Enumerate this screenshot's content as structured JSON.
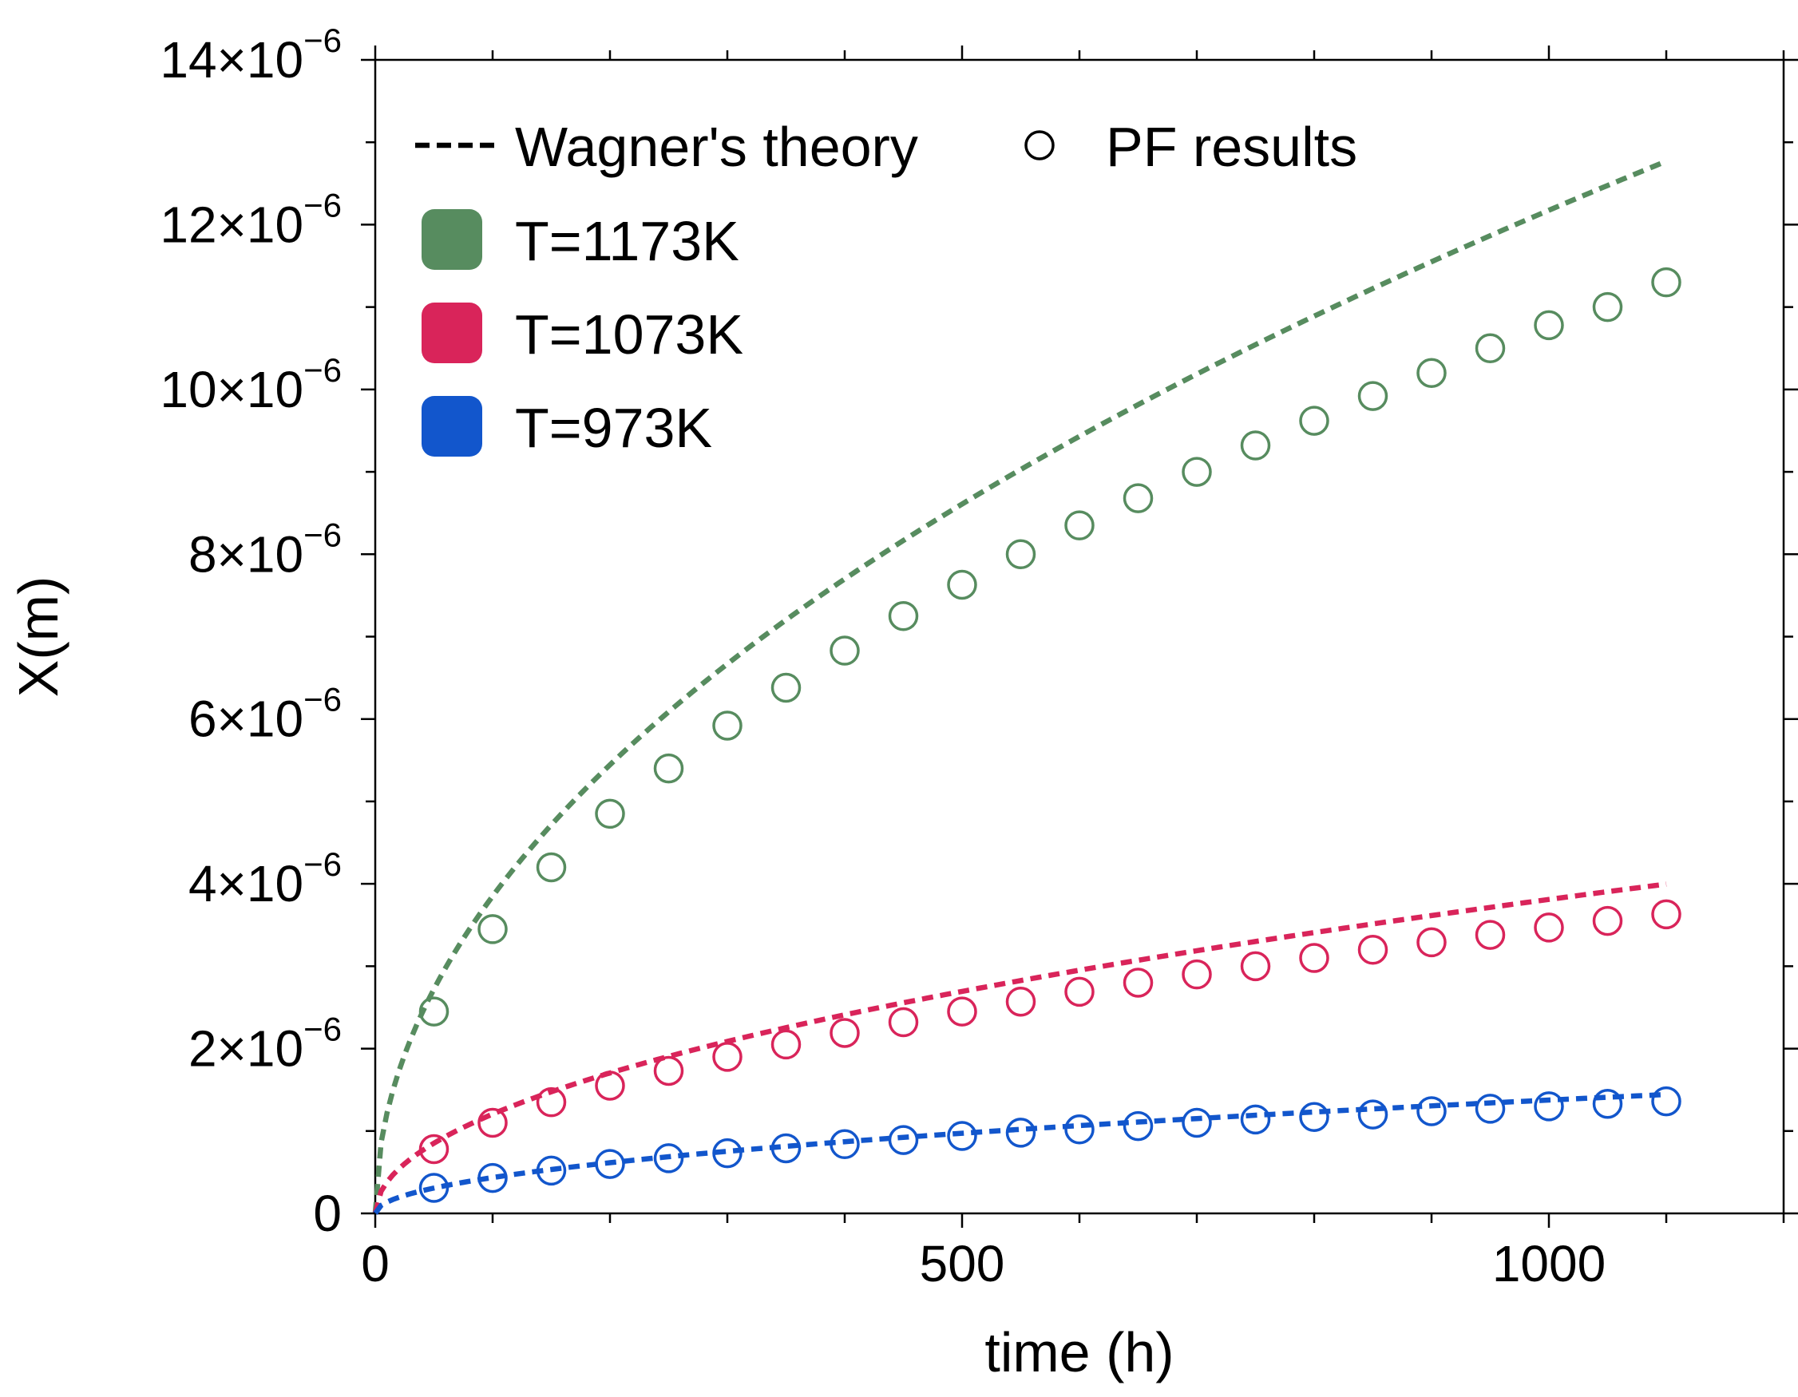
{
  "chart_data": {
    "type": "line",
    "title": "",
    "xlabel": "time (h)",
    "ylabel": "X(m)",
    "xlim": [
      0,
      1200
    ],
    "ylim": [
      0,
      1.4e-05
    ],
    "x_ticks": [
      0,
      500,
      1000
    ],
    "x_tick_labels": [
      "0",
      "500",
      "1000"
    ],
    "y_ticks": [
      0,
      2e-06,
      4e-06,
      6e-06,
      8e-06,
      1e-05,
      1.2e-05,
      1.4e-05
    ],
    "y_tick_labels": [
      {
        "base": "0",
        "exp": ""
      },
      {
        "base": "2×10",
        "exp": "−6"
      },
      {
        "base": "4×10",
        "exp": "−6"
      },
      {
        "base": "6×10",
        "exp": "−6"
      },
      {
        "base": "8×10",
        "exp": "−6"
      },
      {
        "base": "10×10",
        "exp": "−6"
      },
      {
        "base": "12×10",
        "exp": "−6"
      },
      {
        "base": "14×10",
        "exp": "−6"
      }
    ],
    "grid": false,
    "legend": {
      "placement": "top-left",
      "line_label": "Wagner's theory",
      "marker_label": "PF results",
      "series_labels": [
        "T=1173K",
        "T=1073K",
        "T=973K"
      ]
    },
    "series": [
      {
        "name": "T=1173K",
        "color": "#578c5f",
        "theory": {
          "x_max": 1100,
          "x_step": 5,
          "k": 3.85e-07
        },
        "pf_results": {
          "x": [
            50,
            100,
            150,
            200,
            250,
            300,
            350,
            400,
            450,
            500,
            550,
            600,
            650,
            700,
            750,
            800,
            850,
            900,
            950,
            1000,
            1050,
            1100
          ],
          "y": [
            2.45e-06,
            3.45e-06,
            4.2e-06,
            4.85e-06,
            5.4e-06,
            5.92e-06,
            6.38e-06,
            6.83e-06,
            7.25e-06,
            7.63e-06,
            8e-06,
            8.35e-06,
            8.68e-06,
            9e-06,
            9.32e-06,
            9.62e-06,
            9.92e-06,
            1.02e-05,
            1.05e-05,
            1.078e-05,
            1.1e-05,
            1.13e-05
          ]
        }
      },
      {
        "name": "T=1073K",
        "color": "#d9245a",
        "theory": {
          "x_max": 1100,
          "x_step": 5,
          "k": 1.205e-07
        },
        "pf_results": {
          "x": [
            50,
            100,
            150,
            200,
            250,
            300,
            350,
            400,
            450,
            500,
            550,
            600,
            650,
            700,
            750,
            800,
            850,
            900,
            950,
            1000,
            1050,
            1100
          ],
          "y": [
            7.8e-07,
            1.1e-06,
            1.35e-06,
            1.55e-06,
            1.73e-06,
            1.9e-06,
            2.05e-06,
            2.19e-06,
            2.32e-06,
            2.45e-06,
            2.57e-06,
            2.69e-06,
            2.8e-06,
            2.9e-06,
            3e-06,
            3.1e-06,
            3.2e-06,
            3.29e-06,
            3.38e-06,
            3.47e-06,
            3.55e-06,
            3.63e-06
          ]
        }
      },
      {
        "name": "T=973K",
        "color": "#1256cc",
        "theory": {
          "x_max": 1100,
          "x_step": 5,
          "k": 4.35e-08
        },
        "pf_results": {
          "x": [
            50,
            100,
            150,
            200,
            250,
            300,
            350,
            400,
            450,
            500,
            550,
            600,
            650,
            700,
            750,
            800,
            850,
            900,
            950,
            1000,
            1050,
            1100
          ],
          "y": [
            3.1e-07,
            4.3e-07,
            5.2e-07,
            6e-07,
            6.7e-07,
            7.3e-07,
            7.9e-07,
            8.4e-07,
            8.9e-07,
            9.4e-07,
            9.8e-07,
            1.02e-06,
            1.06e-06,
            1.1e-06,
            1.14e-06,
            1.17e-06,
            1.2e-06,
            1.24e-06,
            1.27e-06,
            1.3e-06,
            1.33e-06,
            1.36e-06
          ]
        }
      }
    ]
  }
}
